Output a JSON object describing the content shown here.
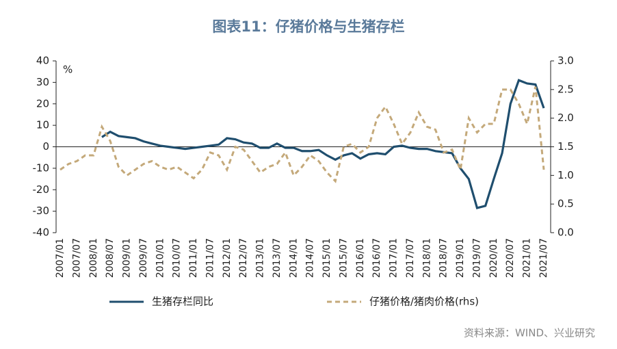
{
  "chart_data": {
    "type": "line",
    "title": "图表11：仔猪价格与生猪存栏",
    "y_unit": "%",
    "source": "资料来源：WIND、兴业研究",
    "categories": [
      "2007/01",
      null,
      "2007/07",
      null,
      "2008/01",
      null,
      "2008/07",
      null,
      "2009/01",
      null,
      "2009/07",
      null,
      "2010/01",
      null,
      "2010/07",
      null,
      "2011/01",
      null,
      "2011/07",
      null,
      "2012/01",
      null,
      "2012/07",
      null,
      "2013/01",
      null,
      "2013/07",
      null,
      "2014/01",
      null,
      "2014/07",
      null,
      "2015/01",
      null,
      "2015/07",
      null,
      "2016/01",
      null,
      "2016/07",
      null,
      "2017/01",
      null,
      "2017/07",
      null,
      "2018/01",
      null,
      "2018/07",
      null,
      "2019/01",
      null,
      "2019/07",
      null,
      "2020/01",
      null,
      "2020/07",
      null,
      "2021/01",
      null,
      "2021/07"
    ],
    "series": [
      {
        "name": "生猪存栏同比",
        "color": "#1f4e6e",
        "style": "solid",
        "values": [
          null,
          null,
          null,
          null,
          null,
          4.5,
          7,
          5,
          4.5,
          4,
          2.5,
          1.5,
          0.5,
          0,
          -0.5,
          -1,
          -0.5,
          0,
          0.5,
          1,
          4,
          3.5,
          2,
          1.5,
          -0.5,
          -0.5,
          1.5,
          -0.5,
          -0.5,
          -2,
          -2,
          -1.5,
          -4,
          -6,
          -4,
          -3,
          -5.5,
          -3.5,
          -3,
          -3.5,
          0,
          0.5,
          -0.5,
          -1,
          -1,
          -2,
          -2.5,
          -3,
          -10,
          -15,
          -28.5,
          -27.5,
          -15,
          -3,
          20,
          31,
          29.5,
          29,
          18
        ]
      },
      {
        "name": "仔猪价格/猪肉价格(rhs)",
        "color": "#c4a97a",
        "style": "dashed",
        "axis": "y2",
        "values": [
          1.1,
          1.2,
          1.25,
          1.35,
          1.35,
          1.85,
          1.6,
          1.15,
          1.0,
          1.1,
          1.2,
          1.25,
          1.15,
          1.1,
          1.15,
          1.05,
          0.95,
          1.1,
          1.4,
          1.35,
          1.1,
          1.5,
          1.45,
          1.25,
          1.05,
          1.15,
          1.2,
          1.4,
          1.0,
          1.15,
          1.35,
          1.25,
          1.05,
          0.9,
          1.5,
          1.55,
          1.4,
          1.5,
          2.0,
          2.2,
          1.9,
          1.55,
          1.75,
          2.1,
          1.85,
          1.8,
          1.4,
          1.45,
          1.1,
          2.0,
          1.75,
          1.9,
          1.9,
          2.5,
          2.5,
          2.25,
          1.9,
          2.55,
          1.1
        ]
      }
    ],
    "ylim": [
      -40,
      40
    ],
    "yticks": [
      -40,
      -30,
      -20,
      -10,
      0,
      10,
      20,
      30,
      40
    ],
    "y2lim": [
      0,
      3
    ],
    "y2ticks": [
      {
        "value": 0,
        "label": "0.0"
      },
      {
        "value": 0.5,
        "label": "0.5"
      },
      {
        "value": 1,
        "label": "1.0"
      },
      {
        "value": 1.5,
        "label": "1.5"
      },
      {
        "value": 2,
        "label": "2.0"
      },
      {
        "value": 2.5,
        "label": "2.5"
      },
      {
        "value": 3,
        "label": "3.0"
      }
    ],
    "legend": "bottom"
  }
}
